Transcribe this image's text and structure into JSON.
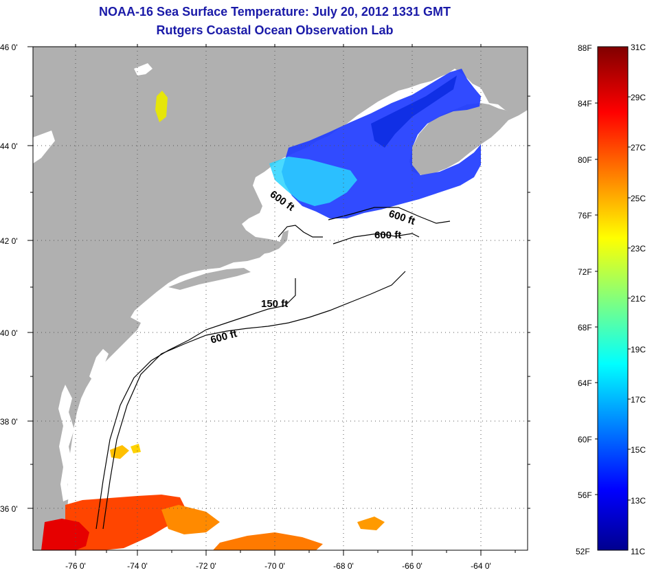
{
  "header": {
    "title": "NOAA-16 Sea Surface Temperature:  July 20, 2012 1331 GMT",
    "subtitle": "Rutgers Coastal Ocean Observation Lab"
  },
  "map": {
    "lat_labels": [
      "46 0'",
      "44 0'",
      "42 0'",
      "40 0'",
      "38 0'",
      "36 0'"
    ],
    "lon_labels": [
      "-76 0'",
      "-74 0'",
      "-72 0'",
      "-70 0'",
      "-68 0'",
      "-66 0'",
      "-64 0'"
    ],
    "lat_range": [
      35,
      46
    ],
    "lon_range": [
      -77,
      -63
    ],
    "contours": [
      {
        "label": "600 ft"
      },
      {
        "label": "600 ft"
      },
      {
        "label": "600 ft"
      },
      {
        "label": "150 ft"
      },
      {
        "label": "600 ft"
      }
    ],
    "colors": {
      "land": "#b0b0b0",
      "ocean": "#ffffff",
      "grid": "#555555"
    }
  },
  "colorbar": {
    "fahrenheit": [
      "88F",
      "84F",
      "80F",
      "76F",
      "72F",
      "68F",
      "64F",
      "60F",
      "56F",
      "52F"
    ],
    "celsius": [
      "31C",
      "29C",
      "27C",
      "25C",
      "23C",
      "21C",
      "19C",
      "17C",
      "15C",
      "13C",
      "11C"
    ],
    "range_c": [
      11,
      31
    ],
    "colormap": "jet"
  }
}
